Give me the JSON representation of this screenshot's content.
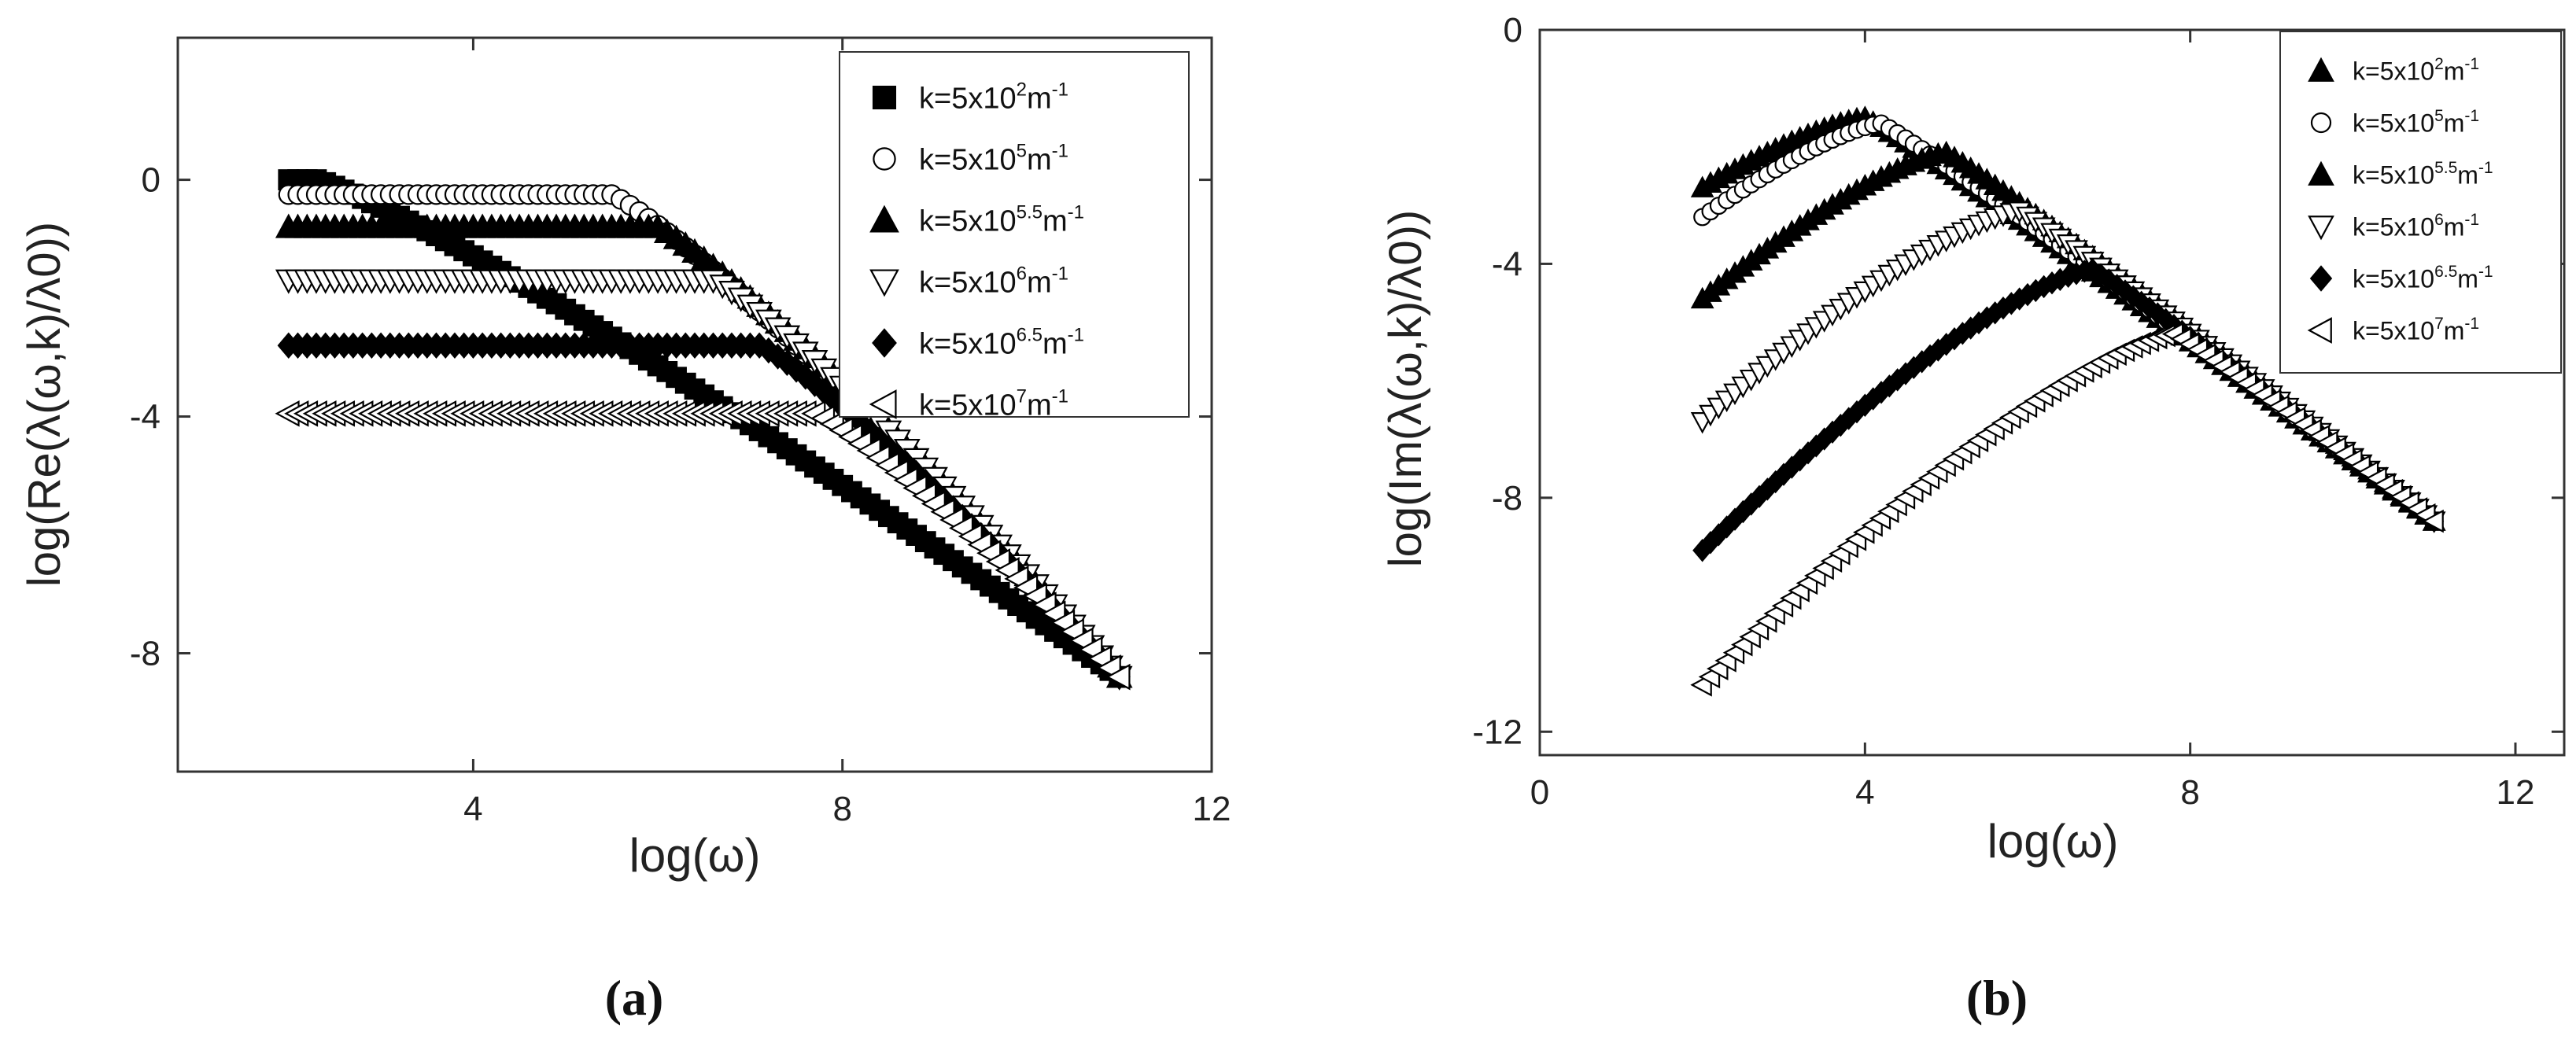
{
  "figure": {
    "panel_labels": [
      "(a)",
      "(b)"
    ]
  },
  "chart_data": [
    {
      "type": "scatter",
      "panel": "(a)",
      "xlabel": "log(ω)",
      "ylabel": "log(Re(λ(ω,k)/λ0))",
      "xlim": [
        0.8,
        12
      ],
      "ylim": [
        -10,
        2.4
      ],
      "xticks": [
        4,
        8,
        12
      ],
      "yticks": [
        0,
        -4,
        -8
      ],
      "grid": false,
      "legend_position": "top-right",
      "series": [
        {
          "name": "k=5x10^2 m^-1",
          "legend_base": "k=5x10",
          "legend_exp": "2",
          "legend_unit": "m",
          "legend_unit_exp": "-1",
          "marker": "square",
          "x_start": 2,
          "x_end": 11,
          "x_step": 0.1,
          "rolloff": 2.3,
          "y_low": 0,
          "y_high": -8.4
        },
        {
          "name": "k=5x10^5 m^-1",
          "legend_base": "k=5x10",
          "legend_exp": "5",
          "legend_unit": "m",
          "legend_unit_exp": "-1",
          "marker": "circle-open",
          "x_start": 2,
          "x_end": 11,
          "x_step": 0.1,
          "rolloff": 5.5,
          "y_low": -0.25,
          "y_high": -8.4
        },
        {
          "name": "k=5x10^5.5 m^-1",
          "legend_base": "k=5x10",
          "legend_exp": "5.5",
          "legend_unit": "m",
          "legend_unit_exp": "-1",
          "marker": "triangle-up",
          "x_start": 2,
          "x_end": 11,
          "x_step": 0.1,
          "rolloff": 6.0,
          "y_low": -0.8,
          "y_high": -8.4
        },
        {
          "name": "k=5x10^6 m^-1",
          "legend_base": "k=5x10",
          "legend_exp": "6",
          "legend_unit": "m",
          "legend_unit_exp": "-1",
          "marker": "triangle-down-open",
          "x_start": 2,
          "x_end": 11,
          "x_step": 0.1,
          "rolloff": 6.6,
          "y_low": -1.7,
          "y_high": -8.4
        },
        {
          "name": "k=5x10^6.5 m^-1",
          "legend_base": "k=5x10",
          "legend_exp": "6.5",
          "legend_unit": "m",
          "legend_unit_exp": "-1",
          "marker": "diamond",
          "x_start": 2,
          "x_end": 11,
          "x_step": 0.1,
          "rolloff": 7.1,
          "y_low": -2.8,
          "y_high": -8.4
        },
        {
          "name": "k=5x10^7 m^-1",
          "legend_base": "k=5x10",
          "legend_exp": "7",
          "legend_unit": "m",
          "legend_unit_exp": "-1",
          "marker": "triangle-left-open",
          "x_start": 2,
          "x_end": 11,
          "x_step": 0.1,
          "rolloff": 7.7,
          "y_low": -3.95,
          "y_high": -8.4
        }
      ]
    },
    {
      "type": "scatter",
      "panel": "(b)",
      "xlabel": "log(ω)",
      "ylabel": "log(Im(λ(ω,k)/λ0))",
      "xlim": [
        0,
        12.6
      ],
      "ylim": [
        -12.4,
        0
      ],
      "xticks": [
        0,
        4,
        8,
        12
      ],
      "yticks": [
        0,
        -4,
        -8,
        -12
      ],
      "grid": false,
      "legend_position": "top-right",
      "series": [
        {
          "name": "k=5x10^2 m^-1",
          "legend_base": "k=5x10",
          "legend_exp": "2",
          "legend_unit": "m",
          "legend_unit_exp": "-1",
          "marker": "triangle-up",
          "x_start": 2,
          "x_end": 11,
          "x_step": 0.1,
          "peak_x": 4.0,
          "y_at_start": -2.7,
          "y_peak": -1.5,
          "y_at_end": -8.4
        },
        {
          "name": "k=5x10^5 m^-1",
          "legend_base": "k=5x10",
          "legend_exp": "5",
          "legend_unit": "m",
          "legend_unit_exp": "-1",
          "marker": "circle-open",
          "x_start": 2,
          "x_end": 11,
          "x_step": 0.1,
          "peak_x": 4.2,
          "y_at_start": -3.2,
          "y_peak": -1.6,
          "y_at_end": -8.4
        },
        {
          "name": "k=5x10^5.5 m^-1",
          "legend_base": "k=5x10",
          "legend_exp": "5.5",
          "legend_unit": "m",
          "legend_unit_exp": "-1",
          "marker": "triangle-up",
          "x_start": 2,
          "x_end": 11,
          "x_step": 0.1,
          "peak_x": 5.0,
          "y_at_start": -4.6,
          "y_peak": -2.1,
          "y_at_end": -8.4
        },
        {
          "name": "k=5x10^6 m^-1",
          "legend_base": "k=5x10",
          "legend_exp": "6",
          "legend_unit": "m",
          "legend_unit_exp": "-1",
          "marker": "triangle-down-open",
          "x_start": 2,
          "x_end": 11,
          "x_step": 0.1,
          "peak_x": 5.9,
          "y_at_start": -6.7,
          "y_peak": -3.1,
          "y_at_end": -8.4
        },
        {
          "name": "k=5x10^6.5 m^-1",
          "legend_base": "k=5x10",
          "legend_exp": "6.5",
          "legend_unit": "m",
          "legend_unit_exp": "-1",
          "marker": "diamond",
          "x_start": 2,
          "x_end": 11,
          "x_step": 0.1,
          "peak_x": 6.8,
          "y_at_start": -8.9,
          "y_peak": -4.1,
          "y_at_end": -8.4
        },
        {
          "name": "k=5x10^7 m^-1",
          "legend_base": "k=5x10",
          "legend_exp": "7",
          "legend_unit": "m",
          "legend_unit_exp": "-1",
          "marker": "triangle-left-open",
          "x_start": 2,
          "x_end": 11,
          "x_step": 0.1,
          "peak_x": 7.8,
          "y_at_start": -11.2,
          "y_peak": -5.2,
          "y_at_end": -8.4
        }
      ]
    }
  ]
}
